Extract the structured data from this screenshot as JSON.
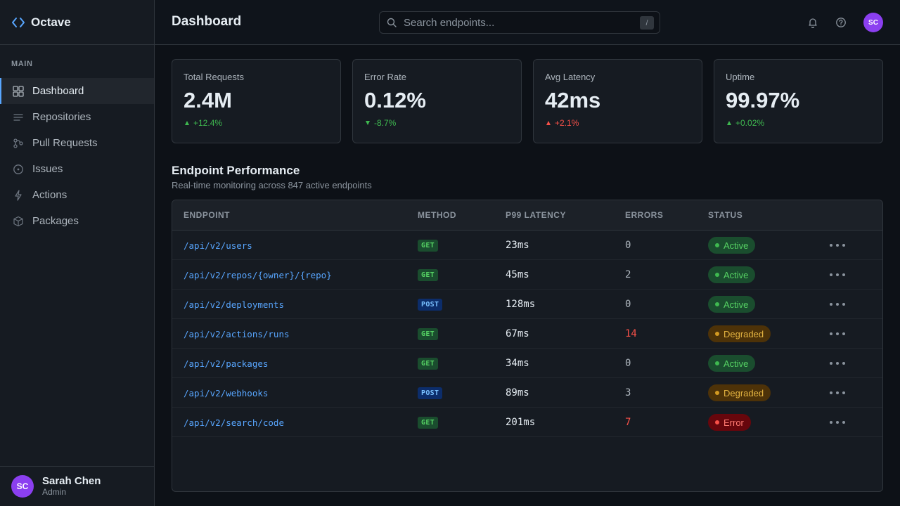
{
  "app": {
    "name": "Octave"
  },
  "sidebar": {
    "section_label": "MAIN",
    "items": [
      {
        "label": "Dashboard",
        "icon": "grid-icon",
        "active": true
      },
      {
        "label": "Repositories",
        "icon": "list-icon"
      },
      {
        "label": "Pull Requests",
        "icon": "branch-icon"
      },
      {
        "label": "Issues",
        "icon": "issue-icon"
      },
      {
        "label": "Actions",
        "icon": "bolt-icon"
      },
      {
        "label": "Packages",
        "icon": "package-icon"
      }
    ],
    "user": {
      "initials": "SC",
      "name": "Sarah Chen",
      "role": "Admin"
    }
  },
  "header": {
    "title": "Dashboard",
    "search_placeholder": "Search endpoints...",
    "search_shortcut": "/",
    "avatar_initials": "SC"
  },
  "stats": [
    {
      "label": "Total Requests",
      "value": "2.4M",
      "delta": "+12.4%",
      "trend": "up",
      "tone": "good"
    },
    {
      "label": "Error Rate",
      "value": "0.12%",
      "delta": "-8.7%",
      "trend": "down",
      "tone": "good"
    },
    {
      "label": "Avg Latency",
      "value": "42ms",
      "delta": "+2.1%",
      "trend": "up",
      "tone": "bad"
    },
    {
      "label": "Uptime",
      "value": "99.97%",
      "delta": "+0.02%",
      "trend": "up",
      "tone": "good"
    }
  ],
  "section": {
    "title": "Endpoint Performance",
    "subtitle": "Real-time monitoring across 847 active endpoints"
  },
  "table": {
    "columns": [
      "ENDPOINT",
      "METHOD",
      "P99 LATENCY",
      "ERRORS",
      "STATUS"
    ],
    "rows": [
      {
        "endpoint": "/api/v2/users",
        "method": "GET",
        "latency": "23ms",
        "errors": "0",
        "status": "Active"
      },
      {
        "endpoint": "/api/v2/repos/{owner}/{repo}",
        "method": "GET",
        "latency": "45ms",
        "errors": "2",
        "status": "Active"
      },
      {
        "endpoint": "/api/v2/deployments",
        "method": "POST",
        "latency": "128ms",
        "errors": "0",
        "status": "Active"
      },
      {
        "endpoint": "/api/v2/actions/runs",
        "method": "GET",
        "latency": "67ms",
        "errors": "14",
        "status": "Degraded"
      },
      {
        "endpoint": "/api/v2/packages",
        "method": "GET",
        "latency": "34ms",
        "errors": "0",
        "status": "Active"
      },
      {
        "endpoint": "/api/v2/webhooks",
        "method": "POST",
        "latency": "89ms",
        "errors": "3",
        "status": "Degraded"
      },
      {
        "endpoint": "/api/v2/search/code",
        "method": "GET",
        "latency": "201ms",
        "errors": "7",
        "status": "Error"
      }
    ]
  },
  "colors": {
    "accent": "#58a6ff",
    "active": "#3fb950",
    "degraded": "#d29922",
    "error": "#f85149",
    "avatar": "#8b3ff0"
  }
}
